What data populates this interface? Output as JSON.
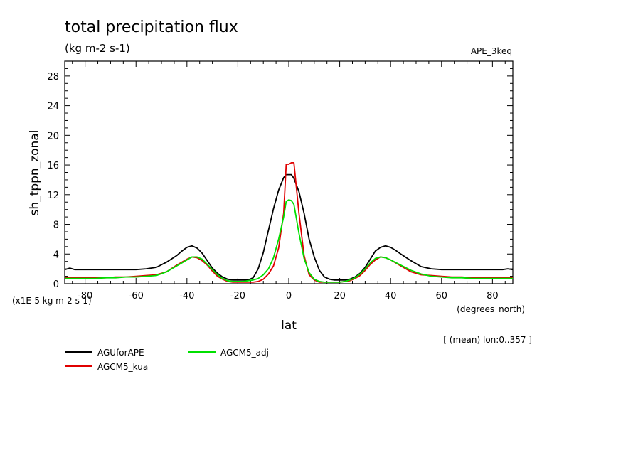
{
  "chart_data": {
    "type": "line",
    "title": "total precipitation flux",
    "units_line": "(kg m-2 s-1)",
    "dataset_label": "APE_3keq",
    "ylabel": "sh_tppn_zonal",
    "xlabel": "lat",
    "x_units": "(degrees_north)",
    "y_scale_note": "(x1E-5 kg m-2 s-1)",
    "footnote": "[ (mean) lon:0..357 ]",
    "xlim": [
      -88,
      88
    ],
    "ylim": [
      0,
      30
    ],
    "xticks": [
      -80,
      -60,
      -40,
      -20,
      0,
      20,
      40,
      60,
      80
    ],
    "yticks": [
      0,
      4,
      8,
      12,
      16,
      20,
      24,
      28
    ],
    "grid": false,
    "legend_placement": "below",
    "series": [
      {
        "name": "AGUforAPE",
        "color": "#000000",
        "x": [
          -88,
          -86,
          -84,
          -80,
          -76,
          -72,
          -68,
          -64,
          -60,
          -56,
          -52,
          -48,
          -44,
          -42,
          -40,
          -38,
          -36,
          -34,
          -32,
          -30,
          -28,
          -26,
          -24,
          -22,
          -20,
          -18,
          -16,
          -14,
          -12,
          -10,
          -8,
          -6,
          -4,
          -2,
          -1,
          0,
          1,
          2,
          4,
          6,
          8,
          10,
          12,
          14,
          16,
          18,
          20,
          22,
          24,
          26,
          28,
          30,
          32,
          34,
          36,
          38,
          40,
          42,
          44,
          48,
          52,
          56,
          60,
          64,
          68,
          72,
          76,
          80,
          84,
          86,
          88
        ],
        "y": [
          1.9,
          2.1,
          1.9,
          1.9,
          1.9,
          1.9,
          1.9,
          1.9,
          1.9,
          2.0,
          2.2,
          2.9,
          3.8,
          4.4,
          4.9,
          5.1,
          4.8,
          4.1,
          3.1,
          2.1,
          1.4,
          0.9,
          0.6,
          0.5,
          0.5,
          0.5,
          0.5,
          0.8,
          2.0,
          4.2,
          7.2,
          10.1,
          12.6,
          14.3,
          14.7,
          14.7,
          14.7,
          14.2,
          12.4,
          9.5,
          6.0,
          3.6,
          1.8,
          0.9,
          0.6,
          0.5,
          0.5,
          0.5,
          0.6,
          0.9,
          1.4,
          2.2,
          3.3,
          4.4,
          4.9,
          5.1,
          4.9,
          4.5,
          4.0,
          3.1,
          2.3,
          2.0,
          1.9,
          1.9,
          1.9,
          1.9,
          1.9,
          1.9,
          1.9,
          2.0,
          1.9
        ]
      },
      {
        "name": "AGCM5_kua",
        "color": "#e00000",
        "x": [
          -88,
          -84,
          -80,
          -76,
          -72,
          -68,
          -64,
          -60,
          -56,
          -52,
          -48,
          -44,
          -40,
          -38,
          -36,
          -34,
          -32,
          -30,
          -28,
          -26,
          -24,
          -22,
          -20,
          -18,
          -16,
          -14,
          -12,
          -10,
          -8,
          -6,
          -4,
          -2,
          -1,
          0,
          1,
          2,
          4,
          6,
          8,
          10,
          12,
          14,
          16,
          18,
          20,
          22,
          24,
          26,
          28,
          30,
          32,
          34,
          36,
          38,
          40,
          44,
          48,
          52,
          56,
          60,
          64,
          68,
          72,
          76,
          80,
          84,
          88
        ],
        "y": [
          0.8,
          0.8,
          0.8,
          0.8,
          0.8,
          0.9,
          0.9,
          1.0,
          1.1,
          1.2,
          1.6,
          2.5,
          3.3,
          3.6,
          3.5,
          3.1,
          2.5,
          1.7,
          1.0,
          0.6,
          0.3,
          0.2,
          0.2,
          0.2,
          0.2,
          0.2,
          0.3,
          0.6,
          1.3,
          2.4,
          4.8,
          9.5,
          16.1,
          16.1,
          16.3,
          16.3,
          9.5,
          3.8,
          1.2,
          0.5,
          0.2,
          0.2,
          0.2,
          0.2,
          0.2,
          0.3,
          0.4,
          0.7,
          1.1,
          1.8,
          2.6,
          3.2,
          3.6,
          3.5,
          3.2,
          2.4,
          1.6,
          1.2,
          1.1,
          1.0,
          0.9,
          0.9,
          0.8,
          0.8,
          0.8,
          0.8,
          0.8
        ]
      },
      {
        "name": "AGCM5_adj",
        "color": "#00e000",
        "x": [
          -88,
          -84,
          -80,
          -76,
          -72,
          -68,
          -64,
          -60,
          -56,
          -52,
          -48,
          -44,
          -40,
          -38,
          -36,
          -34,
          -32,
          -30,
          -28,
          -26,
          -24,
          -22,
          -20,
          -18,
          -16,
          -14,
          -12,
          -10,
          -8,
          -6,
          -4,
          -2,
          -1,
          0,
          1,
          2,
          4,
          6,
          8,
          10,
          12,
          14,
          16,
          18,
          20,
          22,
          24,
          26,
          28,
          30,
          32,
          34,
          36,
          38,
          40,
          44,
          48,
          52,
          56,
          60,
          64,
          68,
          72,
          76,
          80,
          84,
          88
        ],
        "y": [
          0.7,
          0.7,
          0.7,
          0.7,
          0.8,
          0.8,
          0.9,
          0.9,
          1.0,
          1.1,
          1.6,
          2.4,
          3.2,
          3.6,
          3.6,
          3.3,
          2.6,
          1.9,
          1.2,
          0.7,
          0.4,
          0.3,
          0.3,
          0.3,
          0.4,
          0.5,
          0.7,
          1.2,
          2.0,
          3.5,
          6.0,
          9.0,
          11.1,
          11.3,
          11.2,
          10.7,
          6.8,
          3.4,
          1.5,
          0.6,
          0.3,
          0.2,
          0.2,
          0.2,
          0.2,
          0.3,
          0.5,
          0.8,
          1.3,
          2.0,
          2.8,
          3.4,
          3.6,
          3.5,
          3.2,
          2.5,
          1.8,
          1.3,
          1.0,
          0.9,
          0.8,
          0.8,
          0.7,
          0.7,
          0.7,
          0.7,
          0.7
        ]
      }
    ]
  }
}
